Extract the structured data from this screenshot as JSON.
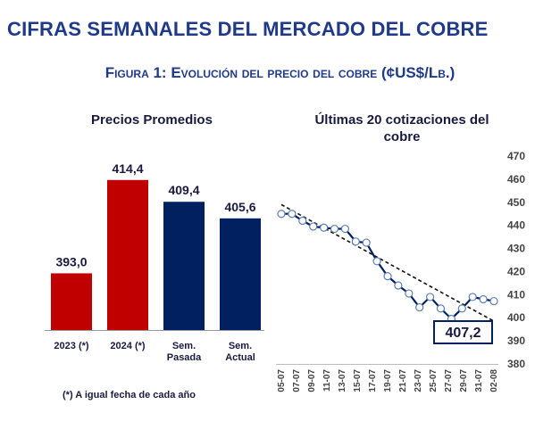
{
  "page_title": "CIFRAS SEMANALES DEL MERCADO DEL COBRE",
  "figure_title": "Figura 1: Evolución del precio del cobre (¢US$/Lb.)",
  "footnote": "(*) A igual fecha de cada año",
  "chart_data": [
    {
      "type": "bar",
      "title": "Precios Promedios",
      "categories": [
        "2023 (*)",
        "2024 (*)",
        "Sem. Pasada",
        "Sem. Actual"
      ],
      "category_lines": [
        [
          "2023 (*)"
        ],
        [
          "2024 (*)"
        ],
        [
          "Sem.",
          "Pasada"
        ],
        [
          "Sem.",
          "Actual"
        ]
      ],
      "values": [
        393.0,
        414.4,
        409.4,
        405.6
      ],
      "value_labels": [
        "393,0",
        "414,4",
        "409,4",
        "405,6"
      ],
      "colors": [
        "#c00000",
        "#c00000",
        "#002060",
        "#002060"
      ]
    },
    {
      "type": "line",
      "title": "Últimas 20 cotizaciones del cobre",
      "x": [
        "05-07",
        "08-07",
        "09-07",
        "10-07",
        "11-07",
        "12-07",
        "15-07",
        "16-07",
        "17-07",
        "18-07",
        "19-07",
        "22-07",
        "23-07",
        "24-07",
        "25-07",
        "26-07",
        "29-07",
        "30-07",
        "31-07",
        "01-08",
        "02-08"
      ],
      "x_tick_labels": [
        "05-07",
        "07-07",
        "09-07",
        "11-07",
        "13-07",
        "15-07",
        "17-07",
        "19-07",
        "21-07",
        "23-07",
        "25-07",
        "27-07",
        "29-07",
        "31-07",
        "02-08"
      ],
      "y": [
        445.0,
        445.0,
        442.0,
        439.5,
        439.0,
        438.5,
        438.5,
        433.0,
        432.5,
        424.5,
        418.0,
        414.0,
        410.5,
        404.5,
        409.0,
        404.0,
        399.5,
        404.0,
        409.0,
        408.0,
        407.2
      ],
      "trend_line": {
        "start": 449.0,
        "end": 398.5,
        "style": "dashed"
      },
      "ylim": [
        380,
        470
      ],
      "y_ticks": [
        380,
        390,
        400,
        410,
        420,
        430,
        440,
        450,
        460,
        470
      ],
      "callout_label": "407,2",
      "line_color": "#002060",
      "marker_face": "#ffffff"
    }
  ]
}
